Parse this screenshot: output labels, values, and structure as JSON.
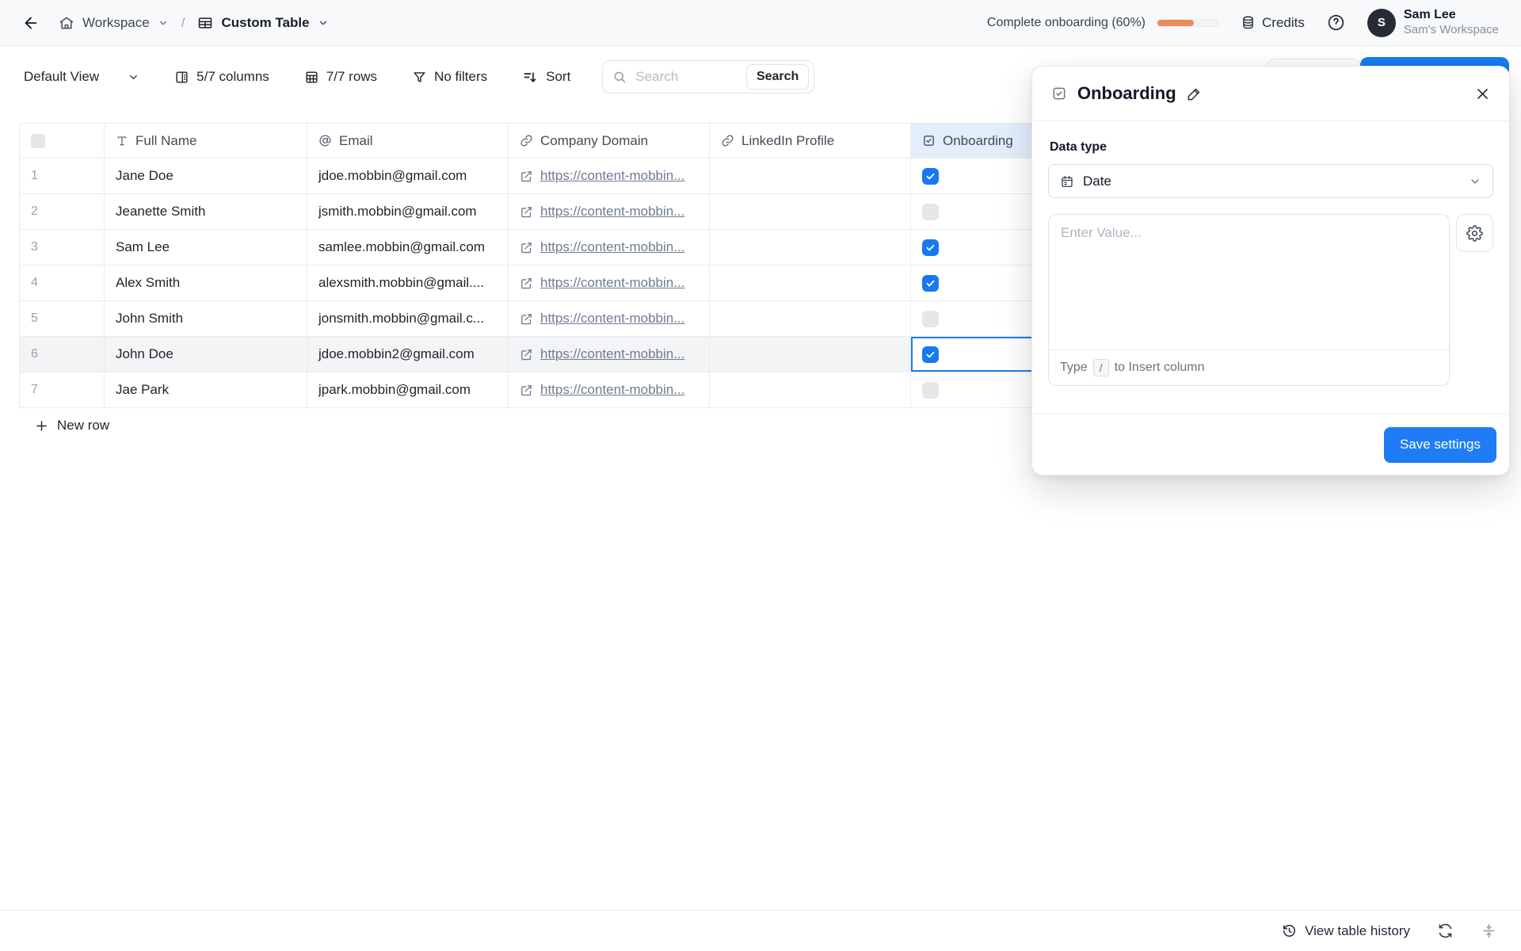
{
  "topbar": {
    "breadcrumb": {
      "workspace": "Workspace",
      "separator": "/",
      "table": "Custom Table"
    },
    "progress": {
      "label": "Complete onboarding (60%)",
      "percent": 60
    },
    "credits_label": "Credits",
    "user": {
      "name": "Sam Lee",
      "workspace": "Sam's Workspace",
      "avatar_initial": "S"
    }
  },
  "toolbar": {
    "view_selector": "Default View",
    "columns_label": "5/7 columns",
    "rows_label": "7/7 rows",
    "filters_label": "No filters",
    "sort_label": "Sort",
    "search": {
      "placeholder": "Search",
      "button_label": "Search"
    }
  },
  "table": {
    "columns": [
      {
        "label": "Full Name",
        "type_icon": "text-type-icon"
      },
      {
        "label": "Email",
        "type_icon": "at-icon"
      },
      {
        "label": "Company Domain",
        "type_icon": "link-icon"
      },
      {
        "label": "LinkedIn Profile",
        "type_icon": "link-icon"
      },
      {
        "label": "Onboarding",
        "type_icon": "checkbox-type-icon"
      }
    ],
    "rows": [
      {
        "num": "1",
        "full_name": "Jane Doe",
        "email": "jdoe.mobbin@gmail.com",
        "company_domain": "https://content-mobbin...",
        "linkedin": "",
        "onboarding": true,
        "highlighted": false,
        "cell_selected": false
      },
      {
        "num": "2",
        "full_name": "Jeanette Smith",
        "email": "jsmith.mobbin@gmail.com",
        "company_domain": "https://content-mobbin...",
        "linkedin": "",
        "onboarding": false,
        "highlighted": false,
        "cell_selected": false
      },
      {
        "num": "3",
        "full_name": "Sam Lee",
        "email": "samlee.mobbin@gmail.com",
        "company_domain": "https://content-mobbin...",
        "linkedin": "",
        "onboarding": true,
        "highlighted": false,
        "cell_selected": false
      },
      {
        "num": "4",
        "full_name": "Alex Smith",
        "email": "alexsmith.mobbin@gmail....",
        "company_domain": "https://content-mobbin...",
        "linkedin": "",
        "onboarding": true,
        "highlighted": false,
        "cell_selected": false
      },
      {
        "num": "5",
        "full_name": "John Smith",
        "email": "jonsmith.mobbin@gmail.c...",
        "company_domain": "https://content-mobbin...",
        "linkedin": "",
        "onboarding": false,
        "highlighted": false,
        "cell_selected": false
      },
      {
        "num": "6",
        "full_name": "John Doe",
        "email": "jdoe.mobbin2@gmail.com",
        "company_domain": "https://content-mobbin...",
        "linkedin": "",
        "onboarding": true,
        "highlighted": true,
        "cell_selected": true
      },
      {
        "num": "7",
        "full_name": "Jae Park",
        "email": "jpark.mobbin@gmail.com",
        "company_domain": "https://content-mobbin...",
        "linkedin": "",
        "onboarding": false,
        "highlighted": false,
        "cell_selected": false
      }
    ],
    "new_row_label": "New row"
  },
  "panel": {
    "title": "Onboarding",
    "data_type_label": "Data type",
    "data_type_value": "Date",
    "value_placeholder": "Enter Value...",
    "hint_prefix": "Type",
    "hint_key": "/",
    "hint_suffix": "to Insert column",
    "save_label": "Save settings"
  },
  "statusbar": {
    "history_label": "View table history"
  },
  "colors": {
    "accent_blue": "#1779f2",
    "save_blue": "#1f7cf5",
    "progress_orange": "#ed8a5e",
    "selected_column_bg": "#e3eefc",
    "highlight_row_bg": "#f3f4f6"
  }
}
